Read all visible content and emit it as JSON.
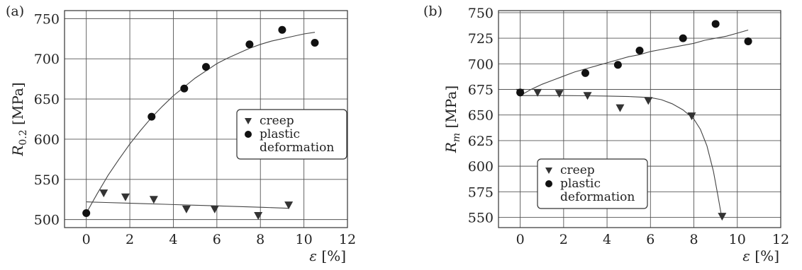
{
  "chart_data": [
    {
      "panel": "(a)",
      "type": "scatter",
      "xlabel_symbol": "ε",
      "xlabel_unit": "[%]",
      "ylabel_symbol": "R",
      "ylabel_sub": "0.2",
      "ylabel_unit": "[MPa]",
      "xlim": [
        -1,
        12
      ],
      "ylim": [
        490,
        760
      ],
      "xticks": [
        0,
        2,
        4,
        6,
        8,
        10,
        12
      ],
      "yticks": [
        500,
        550,
        600,
        650,
        700,
        750
      ],
      "grid": true,
      "legend_entries": [
        "creep",
        "plastic",
        "deformation"
      ],
      "series": [
        {
          "name": "creep",
          "marker": "triangle-down",
          "x": [
            0.8,
            1.8,
            3.1,
            4.6,
            5.9,
            7.9,
            9.3
          ],
          "y": [
            533,
            528,
            525,
            513,
            513,
            505,
            518
          ]
        },
        {
          "name": "plastic deformation",
          "marker": "circle",
          "x": [
            0,
            3,
            4.5,
            5.5,
            7.5,
            9,
            10.5
          ],
          "y": [
            508,
            628,
            663,
            690,
            718,
            736,
            720
          ]
        }
      ],
      "fits": [
        {
          "series": "creep",
          "x": [
            0,
            0.9,
            1.8,
            2.7,
            3.6,
            4.5,
            5.4,
            6.3,
            7.2,
            8.1,
            9.3
          ],
          "y": [
            522,
            521.2,
            520.5,
            519.7,
            519,
            518.2,
            517.5,
            516.7,
            516,
            515.2,
            514
          ]
        },
        {
          "series": "plastic deformation",
          "x": [
            0,
            0.5,
            1,
            1.5,
            2,
            2.5,
            3,
            3.5,
            4,
            4.5,
            5,
            5.5,
            6,
            6.5,
            7,
            7.5,
            8,
            8.5,
            9,
            9.5,
            10,
            10.5
          ],
          "y": [
            508,
            532,
            555,
            575,
            594,
            611,
            627,
            641,
            654,
            665,
            676,
            685,
            694,
            701,
            707,
            713,
            718,
            722,
            725,
            728,
            731,
            733
          ]
        }
      ]
    },
    {
      "panel": "(b)",
      "type": "scatter",
      "xlabel_symbol": "ε",
      "xlabel_unit": "[%]",
      "ylabel_symbol": "R",
      "ylabel_sub": "m",
      "ylabel_unit": "[MPa]",
      "xlim": [
        -1,
        12
      ],
      "ylim": [
        540,
        752
      ],
      "xticks": [
        0,
        2,
        4,
        6,
        8,
        10,
        12
      ],
      "yticks": [
        550,
        575,
        600,
        625,
        650,
        675,
        700,
        725,
        750
      ],
      "grid": true,
      "legend_entries": [
        "creep",
        "plastic",
        "deformation"
      ],
      "series": [
        {
          "name": "creep",
          "marker": "triangle-down",
          "x": [
            0,
            0.8,
            1.8,
            3.1,
            4.6,
            5.9,
            7.9,
            9.3
          ],
          "y": [
            672,
            672,
            671,
            669,
            657,
            664,
            649,
            551
          ]
        },
        {
          "name": "plastic deformation",
          "marker": "circle",
          "x": [
            0,
            3,
            4.5,
            5.5,
            7.5,
            9,
            10.5
          ],
          "y": [
            672,
            691,
            699,
            713,
            725,
            739,
            722
          ]
        }
      ],
      "fits": [
        {
          "series": "creep",
          "x": [
            0,
            1,
            2,
            3,
            4,
            5,
            6,
            6.5,
            7,
            7.5,
            8,
            8.3,
            8.6,
            8.9,
            9.1,
            9.3
          ],
          "y": [
            669,
            669,
            669,
            668.8,
            668.5,
            668,
            667,
            665,
            661,
            655,
            646,
            636,
            620,
            595,
            572,
            548
          ]
        },
        {
          "series": "plastic deformation",
          "x": [
            0,
            0.5,
            1,
            1.5,
            2,
            2.5,
            3,
            3.5,
            4,
            4.5,
            5,
            5.5,
            6,
            6.5,
            7,
            7.5,
            8,
            8.5,
            9,
            9.5,
            10,
            10.5
          ],
          "y": [
            669,
            675,
            680,
            684,
            688,
            692,
            695,
            698,
            701,
            704,
            707,
            709,
            712,
            714,
            716,
            718,
            720,
            723,
            725,
            727,
            730,
            733
          ]
        }
      ]
    }
  ]
}
